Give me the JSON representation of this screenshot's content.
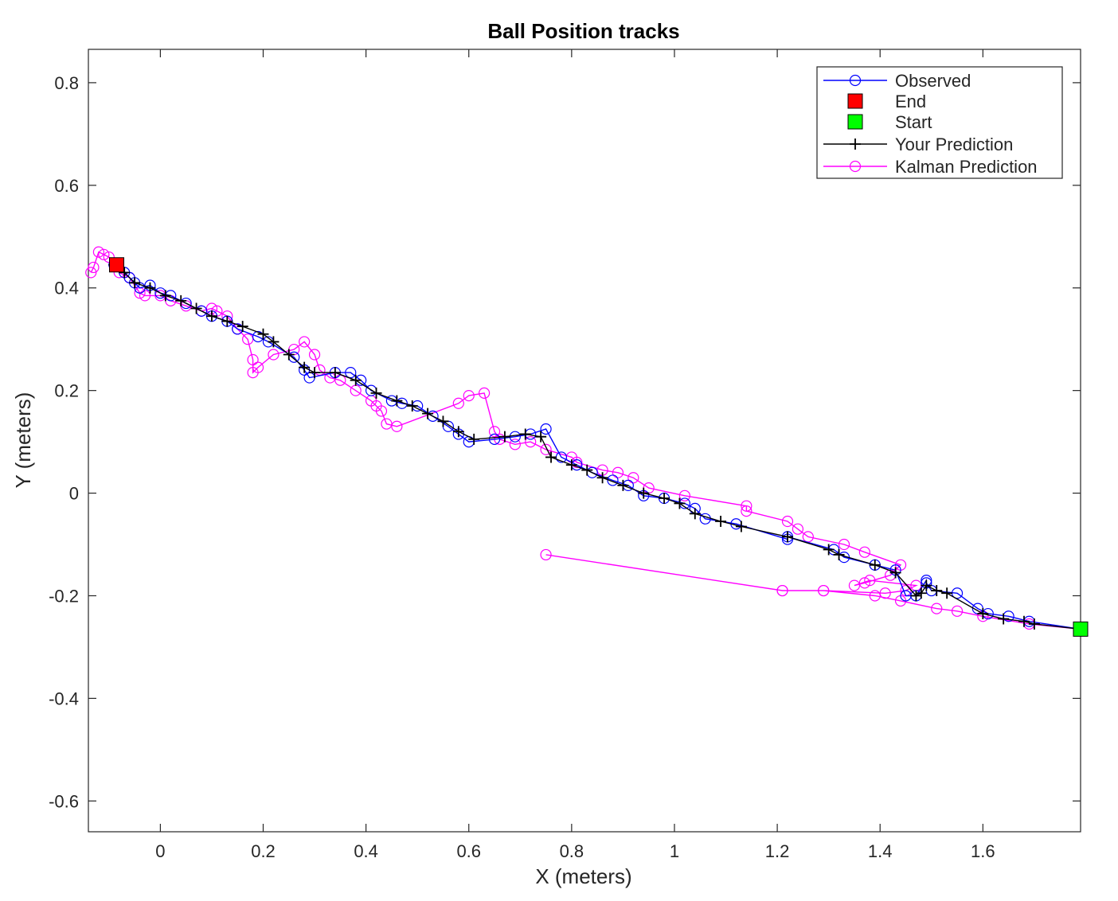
{
  "chart_data": {
    "type": "line",
    "title": "Ball Position tracks",
    "xlabel": "X (meters)",
    "ylabel": "Y (meters)",
    "xlim": [
      -0.14,
      1.79
    ],
    "ylim": [
      -0.66,
      0.865
    ],
    "xticks": [
      0,
      0.2,
      0.4,
      0.6,
      0.8,
      1,
      1.2,
      1.4,
      1.6
    ],
    "xtick_labels": [
      "0",
      "0.2",
      "0.4",
      "0.6",
      "0.8",
      "1",
      "1.2",
      "1.4",
      "1.6"
    ],
    "yticks": [
      -0.6,
      -0.4,
      -0.2,
      0,
      0.2,
      0.4,
      0.6,
      0.8
    ],
    "ytick_labels": [
      "-0.6",
      "-0.4",
      "-0.2",
      "0",
      "0.2",
      "0.4",
      "0.6",
      "0.8"
    ],
    "grid": false,
    "legend_position": "top-right",
    "series": [
      {
        "name": "Observed",
        "color": "#0000ff",
        "marker": "circle",
        "points": [
          [
            1.79,
            -0.265
          ],
          [
            1.69,
            -0.25
          ],
          [
            1.65,
            -0.24
          ],
          [
            1.61,
            -0.235
          ],
          [
            1.59,
            -0.225
          ],
          [
            1.55,
            -0.195
          ],
          [
            1.5,
            -0.19
          ],
          [
            1.49,
            -0.175
          ],
          [
            1.49,
            -0.17
          ],
          [
            1.47,
            -0.2
          ],
          [
            1.45,
            -0.2
          ],
          [
            1.43,
            -0.15
          ],
          [
            1.39,
            -0.14
          ],
          [
            1.33,
            -0.125
          ],
          [
            1.31,
            -0.11
          ],
          [
            1.22,
            -0.085
          ],
          [
            1.22,
            -0.09
          ],
          [
            1.12,
            -0.06
          ],
          [
            1.06,
            -0.05
          ],
          [
            1.04,
            -0.03
          ],
          [
            1.02,
            -0.02
          ],
          [
            0.98,
            -0.01
          ],
          [
            0.94,
            -0.005
          ],
          [
            0.91,
            0.015
          ],
          [
            0.88,
            0.025
          ],
          [
            0.84,
            0.04
          ],
          [
            0.81,
            0.055
          ],
          [
            0.78,
            0.07
          ],
          [
            0.75,
            0.125
          ],
          [
            0.72,
            0.115
          ],
          [
            0.69,
            0.11
          ],
          [
            0.65,
            0.105
          ],
          [
            0.6,
            0.1
          ],
          [
            0.58,
            0.115
          ],
          [
            0.56,
            0.13
          ],
          [
            0.53,
            0.15
          ],
          [
            0.5,
            0.17
          ],
          [
            0.47,
            0.175
          ],
          [
            0.45,
            0.18
          ],
          [
            0.41,
            0.2
          ],
          [
            0.39,
            0.22
          ],
          [
            0.37,
            0.235
          ],
          [
            0.34,
            0.235
          ],
          [
            0.29,
            0.225
          ],
          [
            0.28,
            0.24
          ],
          [
            0.26,
            0.265
          ],
          [
            0.21,
            0.295
          ],
          [
            0.19,
            0.305
          ],
          [
            0.15,
            0.32
          ],
          [
            0.13,
            0.335
          ],
          [
            0.1,
            0.345
          ],
          [
            0.08,
            0.355
          ],
          [
            0.05,
            0.37
          ],
          [
            0.02,
            0.385
          ],
          [
            0,
            0.39
          ],
          [
            -0.02,
            0.405
          ],
          [
            -0.04,
            0.4
          ],
          [
            -0.05,
            0.41
          ],
          [
            -0.06,
            0.42
          ],
          [
            -0.07,
            0.43
          ],
          [
            -0.09,
            0.445
          ]
        ]
      },
      {
        "name": "End",
        "color": "#ff0000",
        "marker": "square",
        "points": [
          [
            -0.085,
            0.445
          ]
        ]
      },
      {
        "name": "Start",
        "color": "#00ff00",
        "marker": "square",
        "points": [
          [
            1.79,
            -0.265
          ]
        ]
      },
      {
        "name": "Your Prediction",
        "color": "#000000",
        "marker": "plus",
        "points": [
          [
            1.79,
            -0.265
          ],
          [
            1.7,
            -0.255
          ],
          [
            1.68,
            -0.25
          ],
          [
            1.64,
            -0.245
          ],
          [
            1.6,
            -0.235
          ],
          [
            1.53,
            -0.195
          ],
          [
            1.51,
            -0.19
          ],
          [
            1.49,
            -0.18
          ],
          [
            1.48,
            -0.195
          ],
          [
            1.47,
            -0.2
          ],
          [
            1.43,
            -0.155
          ],
          [
            1.39,
            -0.14
          ],
          [
            1.32,
            -0.12
          ],
          [
            1.3,
            -0.11
          ],
          [
            1.22,
            -0.085
          ],
          [
            1.13,
            -0.065
          ],
          [
            1.09,
            -0.055
          ],
          [
            1.04,
            -0.04
          ],
          [
            1.01,
            -0.02
          ],
          [
            0.98,
            -0.01
          ],
          [
            0.94,
            0
          ],
          [
            0.9,
            0.015
          ],
          [
            0.86,
            0.03
          ],
          [
            0.83,
            0.045
          ],
          [
            0.8,
            0.055
          ],
          [
            0.76,
            0.07
          ],
          [
            0.74,
            0.11
          ],
          [
            0.71,
            0.115
          ],
          [
            0.67,
            0.11
          ],
          [
            0.61,
            0.105
          ],
          [
            0.58,
            0.12
          ],
          [
            0.55,
            0.14
          ],
          [
            0.52,
            0.155
          ],
          [
            0.49,
            0.17
          ],
          [
            0.46,
            0.18
          ],
          [
            0.42,
            0.195
          ],
          [
            0.38,
            0.22
          ],
          [
            0.34,
            0.235
          ],
          [
            0.3,
            0.235
          ],
          [
            0.28,
            0.245
          ],
          [
            0.25,
            0.27
          ],
          [
            0.22,
            0.295
          ],
          [
            0.2,
            0.31
          ],
          [
            0.16,
            0.325
          ],
          [
            0.13,
            0.335
          ],
          [
            0.1,
            0.345
          ],
          [
            0.07,
            0.36
          ],
          [
            0.04,
            0.375
          ],
          [
            0.01,
            0.385
          ],
          [
            -0.02,
            0.4
          ],
          [
            -0.05,
            0.41
          ],
          [
            -0.07,
            0.43
          ],
          [
            -0.09,
            0.445
          ]
        ]
      },
      {
        "name": "Kalman Prediction",
        "color": "#ff00ff",
        "marker": "circle",
        "points": [
          [
            1.79,
            -0.265
          ],
          [
            1.69,
            -0.255
          ],
          [
            1.6,
            -0.24
          ],
          [
            1.55,
            -0.23
          ],
          [
            1.51,
            -0.225
          ],
          [
            1.44,
            -0.21
          ],
          [
            1.39,
            -0.2
          ],
          [
            1.29,
            -0.19
          ],
          [
            1.21,
            -0.19
          ],
          [
            0.75,
            -0.12
          ],
          [
            1.21,
            -0.19
          ],
          [
            1.29,
            -0.19
          ],
          [
            1.41,
            -0.195
          ],
          [
            1.45,
            -0.19
          ],
          [
            1.47,
            -0.18
          ],
          [
            1.38,
            -0.17
          ],
          [
            1.35,
            -0.18
          ],
          [
            1.37,
            -0.175
          ],
          [
            1.42,
            -0.16
          ],
          [
            1.44,
            -0.14
          ],
          [
            1.37,
            -0.115
          ],
          [
            1.33,
            -0.1
          ],
          [
            1.26,
            -0.085
          ],
          [
            1.24,
            -0.07
          ],
          [
            1.22,
            -0.055
          ],
          [
            1.14,
            -0.035
          ],
          [
            1.14,
            -0.025
          ],
          [
            1.02,
            -0.005
          ],
          [
            0.95,
            0.01
          ],
          [
            0.92,
            0.03
          ],
          [
            0.89,
            0.04
          ],
          [
            0.86,
            0.045
          ],
          [
            0.81,
            0.06
          ],
          [
            0.8,
            0.07
          ],
          [
            0.75,
            0.085
          ],
          [
            0.72,
            0.1
          ],
          [
            0.69,
            0.095
          ],
          [
            0.66,
            0.105
          ],
          [
            0.65,
            0.12
          ],
          [
            0.63,
            0.195
          ],
          [
            0.6,
            0.19
          ],
          [
            0.58,
            0.175
          ],
          [
            0.46,
            0.13
          ],
          [
            0.44,
            0.135
          ],
          [
            0.43,
            0.16
          ],
          [
            0.42,
            0.17
          ],
          [
            0.41,
            0.18
          ],
          [
            0.38,
            0.2
          ],
          [
            0.35,
            0.22
          ],
          [
            0.33,
            0.225
          ],
          [
            0.31,
            0.24
          ],
          [
            0.3,
            0.27
          ],
          [
            0.28,
            0.295
          ],
          [
            0.26,
            0.28
          ],
          [
            0.22,
            0.27
          ],
          [
            0.19,
            0.245
          ],
          [
            0.18,
            0.235
          ],
          [
            0.18,
            0.26
          ],
          [
            0.17,
            0.3
          ],
          [
            0.15,
            0.32
          ],
          [
            0.13,
            0.345
          ],
          [
            0.11,
            0.355
          ],
          [
            0.1,
            0.36
          ],
          [
            0.08,
            0.355
          ],
          [
            0.05,
            0.365
          ],
          [
            0.02,
            0.375
          ],
          [
            0,
            0.385
          ],
          [
            -0.03,
            0.385
          ],
          [
            -0.04,
            0.39
          ],
          [
            -0.06,
            0.42
          ],
          [
            -0.08,
            0.43
          ],
          [
            -0.1,
            0.46
          ],
          [
            -0.11,
            0.465
          ],
          [
            -0.12,
            0.47
          ],
          [
            -0.13,
            0.44
          ],
          [
            -0.135,
            0.43
          ]
        ]
      }
    ]
  }
}
